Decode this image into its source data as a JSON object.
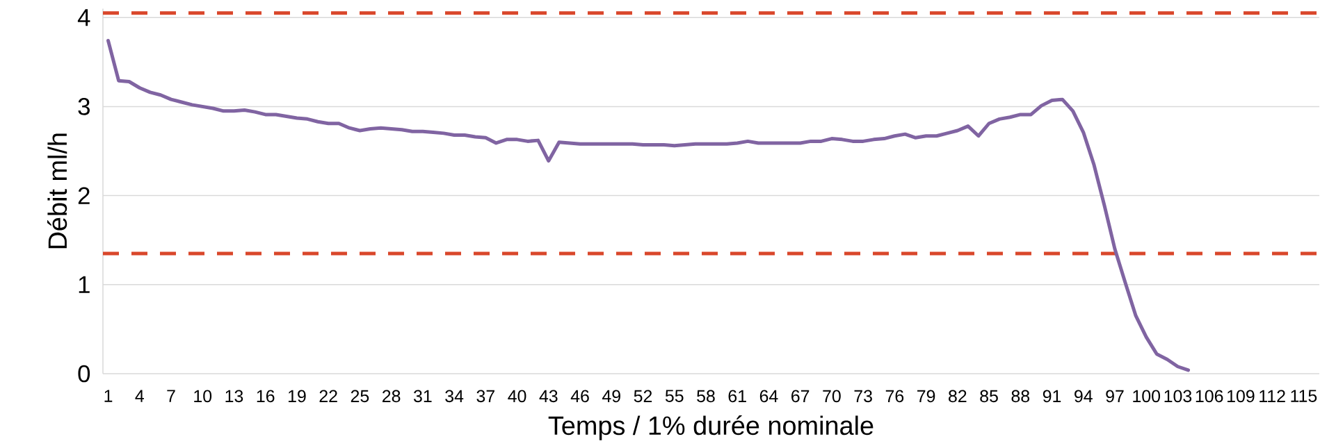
{
  "chart_data": {
    "type": "line",
    "xlabel": "Temps / 1% durée nominale",
    "ylabel": "Débit ml/h",
    "x": [
      1,
      2,
      3,
      4,
      5,
      6,
      7,
      8,
      9,
      10,
      11,
      12,
      13,
      14,
      15,
      16,
      17,
      18,
      19,
      20,
      21,
      22,
      23,
      24,
      25,
      26,
      27,
      28,
      29,
      30,
      31,
      32,
      33,
      34,
      35,
      36,
      37,
      38,
      39,
      40,
      41,
      42,
      43,
      44,
      45,
      46,
      47,
      48,
      49,
      50,
      51,
      52,
      53,
      54,
      55,
      56,
      57,
      58,
      59,
      60,
      61,
      62,
      63,
      64,
      65,
      66,
      67,
      68,
      69,
      70,
      71,
      72,
      73,
      74,
      75,
      76,
      77,
      78,
      79,
      80,
      81,
      82,
      83,
      84,
      85,
      86,
      87,
      88,
      89,
      90,
      91,
      92,
      93,
      94,
      95,
      96,
      97,
      98,
      99,
      100,
      101,
      102,
      103,
      104
    ],
    "series": [
      {
        "color": "#8064a2",
        "values": [
          3.74,
          3.29,
          3.28,
          3.21,
          3.16,
          3.13,
          3.08,
          3.05,
          3.02,
          3.0,
          2.98,
          2.95,
          2.95,
          2.96,
          2.94,
          2.91,
          2.91,
          2.89,
          2.87,
          2.86,
          2.83,
          2.81,
          2.81,
          2.76,
          2.73,
          2.75,
          2.76,
          2.75,
          2.74,
          2.72,
          2.72,
          2.71,
          2.7,
          2.68,
          2.68,
          2.66,
          2.65,
          2.59,
          2.63,
          2.63,
          2.61,
          2.62,
          2.39,
          2.6,
          2.59,
          2.58,
          2.58,
          2.58,
          2.58,
          2.58,
          2.58,
          2.57,
          2.57,
          2.57,
          2.56,
          2.57,
          2.58,
          2.58,
          2.58,
          2.58,
          2.59,
          2.61,
          2.59,
          2.59,
          2.59,
          2.59,
          2.59,
          2.61,
          2.61,
          2.64,
          2.63,
          2.61,
          2.61,
          2.63,
          2.64,
          2.67,
          2.69,
          2.65,
          2.67,
          2.67,
          2.7,
          2.73,
          2.78,
          2.67,
          2.81,
          2.86,
          2.88,
          2.91,
          2.91,
          3.01,
          3.07,
          3.08,
          2.95,
          2.71,
          2.35,
          1.89,
          1.4,
          1.02,
          0.65,
          0.41,
          0.22,
          0.16,
          0.08,
          0.04
        ]
      }
    ],
    "xlim": [
      0.5,
      116.5
    ],
    "ylim": [
      0,
      4.1
    ],
    "xticks": [
      1,
      4,
      7,
      10,
      13,
      16,
      19,
      22,
      25,
      28,
      31,
      34,
      37,
      40,
      43,
      46,
      49,
      52,
      55,
      58,
      61,
      64,
      67,
      70,
      73,
      76,
      79,
      82,
      85,
      88,
      91,
      94,
      97,
      100,
      103,
      106,
      109,
      112,
      115
    ],
    "yticks": [
      0,
      1,
      2,
      3,
      4
    ],
    "grid": "y",
    "ref_lines": [
      {
        "axis": "y",
        "value": 4.05,
        "color": "#d9472b",
        "line_style": "dashed"
      },
      {
        "axis": "y",
        "value": 1.35,
        "color": "#d9472b",
        "line_style": "dashed"
      }
    ]
  }
}
